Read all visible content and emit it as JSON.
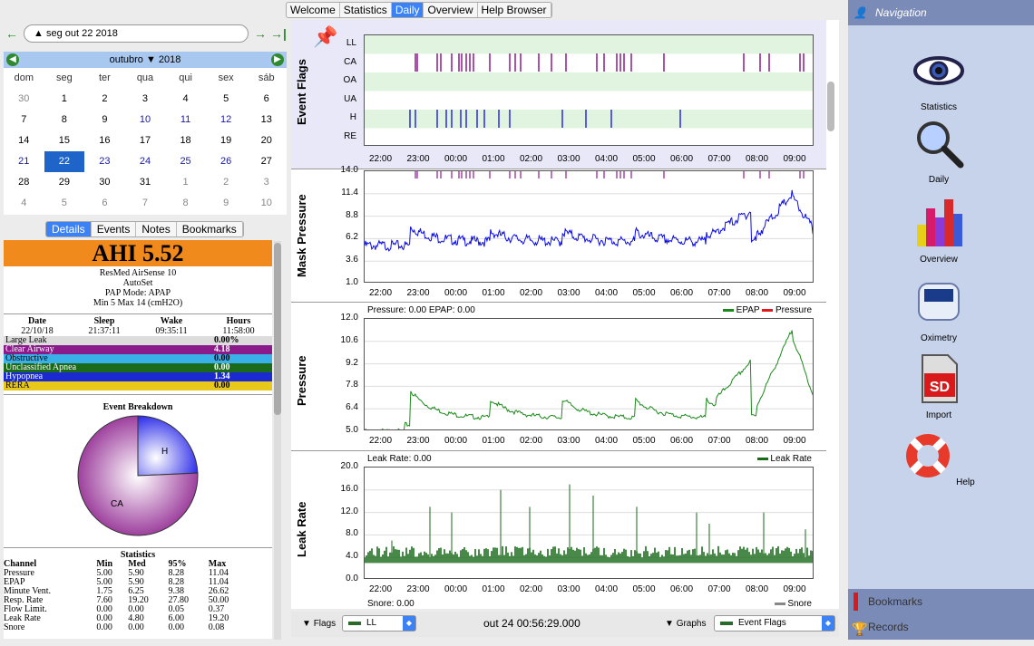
{
  "tabs": [
    "Welcome",
    "Statistics",
    "Daily",
    "Overview",
    "Help Browser"
  ],
  "active_tab": "Daily",
  "date_input": "seg out 22 2018",
  "calendar": {
    "month": "outubro",
    "year": "2018",
    "weekdays": [
      "dom",
      "seg",
      "ter",
      "qua",
      "qui",
      "sex",
      "sáb"
    ],
    "weeks": [
      [
        "30",
        "1",
        "2",
        "3",
        "4",
        "5",
        "6"
      ],
      [
        "7",
        "8",
        "9",
        "10",
        "11",
        "12",
        "13"
      ],
      [
        "14",
        "15",
        "16",
        "17",
        "18",
        "19",
        "20"
      ],
      [
        "21",
        "22",
        "23",
        "24",
        "25",
        "26",
        "27"
      ],
      [
        "28",
        "29",
        "30",
        "31",
        "1",
        "2",
        "3"
      ],
      [
        "4",
        "5",
        "6",
        "7",
        "8",
        "9",
        "10"
      ]
    ],
    "selected": "22"
  },
  "subtabs": [
    "Details",
    "Events",
    "Notes",
    "Bookmarks"
  ],
  "details": {
    "ahi": "AHI 5.52",
    "machine": "ResMed AirSense 10",
    "mode": "AutoSet",
    "pap_mode": "PAP Mode: APAP",
    "pressure": "Min 5 Max 14 (cmH2O)",
    "head": [
      "Date",
      "Sleep",
      "Wake",
      "Hours"
    ],
    "vals": [
      "22/10/18",
      "21:37:11",
      "09:35:11",
      "11:58:00"
    ],
    "events": [
      {
        "name": "Large Leak",
        "val": "0.00%",
        "color": "#dcdcdc",
        "fg": "#000"
      },
      {
        "name": "Clear Airway",
        "val": "4.18",
        "color": "#8b1a8b",
        "fg": "#fff"
      },
      {
        "name": "Obstructive",
        "val": "0.00",
        "color": "#3ab0e8",
        "fg": "#000"
      },
      {
        "name": "Unclassified Apnea",
        "val": "0.00",
        "color": "#1a6a1a",
        "fg": "#fff"
      },
      {
        "name": "Hypopnea",
        "val": "1.34",
        "color": "#1a2ad0",
        "fg": "#fff"
      },
      {
        "name": "RERA",
        "val": "0.00",
        "color": "#e8c81a",
        "fg": "#000"
      }
    ],
    "breakdown_title": "Event Breakdown",
    "pie": [
      {
        "label": "CA",
        "value": 75.7
      },
      {
        "label": "H",
        "value": 24.3
      }
    ],
    "stats_title": "Statistics",
    "stats_head": [
      "Channel",
      "Min",
      "Med",
      "95%",
      "Max"
    ],
    "stats": [
      [
        "Pressure",
        "5.00",
        "5.90",
        "8.28",
        "11.04"
      ],
      [
        "EPAP",
        "5.00",
        "5.90",
        "8.28",
        "11.04"
      ],
      [
        "Minute Vent.",
        "1.75",
        "6.25",
        "9.38",
        "26.62"
      ],
      [
        "Resp. Rate",
        "7.60",
        "19.20",
        "27.80",
        "50.00"
      ],
      [
        "Flow Limit.",
        "0.00",
        "0.00",
        "0.05",
        "0.37"
      ],
      [
        "Leak Rate",
        "0.00",
        "4.80",
        "6.00",
        "19.20"
      ],
      [
        "Snore",
        "0.00",
        "0.00",
        "0.00",
        "0.08"
      ]
    ]
  },
  "graphs": {
    "times": [
      "22:00",
      "23:00",
      "00:00",
      "01:00",
      "02:00",
      "03:00",
      "04:00",
      "05:00",
      "06:00",
      "07:00",
      "08:00",
      "09:00"
    ],
    "flags_title": "Event Flags",
    "flags": [
      "LL",
      "CA",
      "OA",
      "UA",
      "H",
      "RE"
    ],
    "mask_title": "Mask Pressure",
    "mask_y": [
      "14.0",
      "11.4",
      "8.8",
      "6.2",
      "3.6",
      "1.0"
    ],
    "pressure_title": "Pressure",
    "pressure_info": "Pressure: 0.00 EPAP: 0.00",
    "pressure_legend": [
      "EPAP",
      "Pressure"
    ],
    "pressure_y": [
      "12.0",
      "10.6",
      "9.2",
      "7.8",
      "6.4",
      "5.0"
    ],
    "leak_title": "Leak Rate",
    "leak_info": "Leak Rate: 0.00",
    "leak_legend": "Leak Rate",
    "leak_y": [
      "20.0",
      "16.0",
      "12.0",
      "8.0",
      "4.0",
      "0.0"
    ],
    "snore_info": "Snore: 0.00",
    "snore_legend": "Snore"
  },
  "bottom": {
    "flags_label": "Flags",
    "flags_combo": "LL",
    "time": "out 24 00:56:29.000",
    "graphs_label": "Graphs",
    "graphs_combo": "Event Flags"
  },
  "nav": {
    "title": "Navigation",
    "items": [
      "Statistics",
      "Daily",
      "Overview",
      "Oximetry",
      "Import",
      "Help"
    ],
    "bookmarks": "Bookmarks",
    "records": "Records"
  }
}
